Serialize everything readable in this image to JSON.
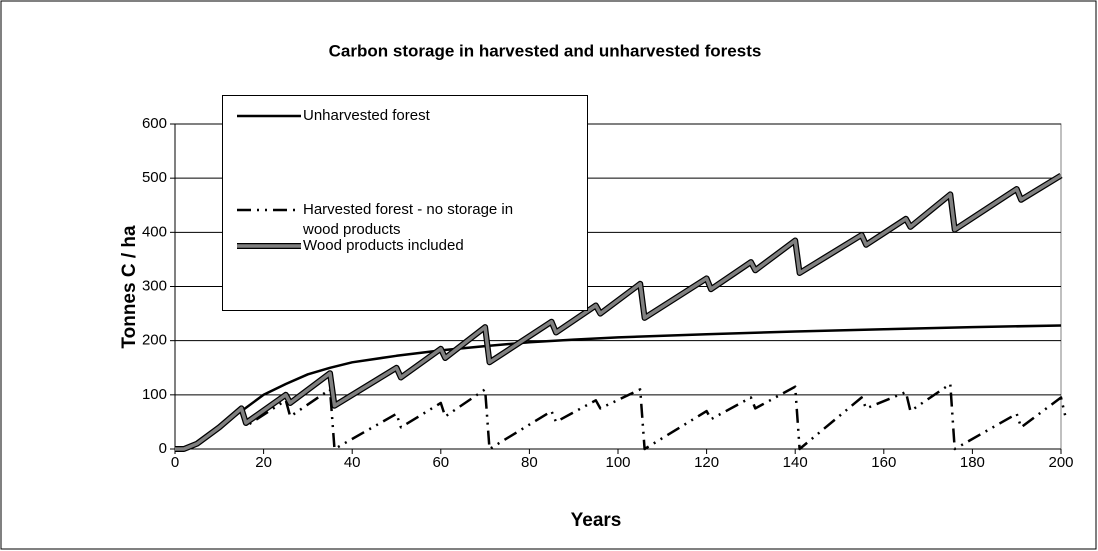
{
  "chart_data": {
    "type": "line",
    "title": "Carbon storage in harvested and unharvested forests",
    "xlabel": "Years",
    "ylabel": "Tonnes C / ha",
    "xlim": [
      0,
      200
    ],
    "xticks": [
      0,
      20,
      40,
      60,
      80,
      100,
      120,
      140,
      160,
      180,
      200
    ],
    "ylim": [
      0,
      600
    ],
    "yticks": [
      0,
      100,
      200,
      300,
      400,
      500,
      600
    ],
    "grid": true,
    "legend": "upper left",
    "series": [
      {
        "name": "Unharvested forest",
        "color": "#000000",
        "x": [
          0,
          2,
          5,
          10,
          15,
          20,
          25,
          30,
          35,
          40,
          50,
          60,
          70,
          80,
          90,
          100,
          120,
          140,
          160,
          180,
          200
        ],
        "values": [
          0,
          0,
          10,
          40,
          70,
          100,
          120,
          138,
          150,
          160,
          172,
          182,
          190,
          197,
          202,
          206,
          212,
          217,
          221,
          225,
          228
        ]
      },
      {
        "name": "Harvested forest - no storage in wood products",
        "color": "#000000",
        "x": [
          0,
          2,
          5,
          10,
          15,
          16,
          25,
          26,
          35,
          36,
          50,
          51,
          60,
          61,
          70,
          71,
          85,
          86,
          95,
          96,
          105,
          106,
          120,
          121,
          130,
          131,
          140,
          141,
          155,
          156,
          165,
          166,
          175,
          176,
          190,
          191,
          200,
          201
        ],
        "values": [
          0,
          0,
          10,
          40,
          72,
          42,
          90,
          60,
          110,
          0,
          65,
          40,
          85,
          60,
          110,
          0,
          70,
          50,
          90,
          75,
          110,
          0,
          70,
          55,
          95,
          75,
          115,
          0,
          95,
          75,
          105,
          70,
          120,
          0,
          65,
          40,
          95,
          60
        ]
      },
      {
        "name": "Wood products included",
        "color": "#808080",
        "x": [
          0,
          2,
          5,
          10,
          15,
          16,
          25,
          26,
          35,
          36,
          50,
          51,
          60,
          61,
          70,
          71,
          85,
          86,
          95,
          96,
          105,
          106,
          120,
          121,
          130,
          131,
          140,
          141,
          155,
          156,
          165,
          166,
          175,
          176,
          190,
          191,
          200
        ],
        "values": [
          0,
          0,
          10,
          40,
          75,
          48,
          100,
          85,
          140,
          80,
          150,
          132,
          185,
          168,
          225,
          160,
          235,
          215,
          265,
          250,
          305,
          242,
          315,
          295,
          345,
          330,
          385,
          325,
          395,
          377,
          425,
          410,
          470,
          405,
          480,
          460,
          505
        ]
      }
    ]
  }
}
